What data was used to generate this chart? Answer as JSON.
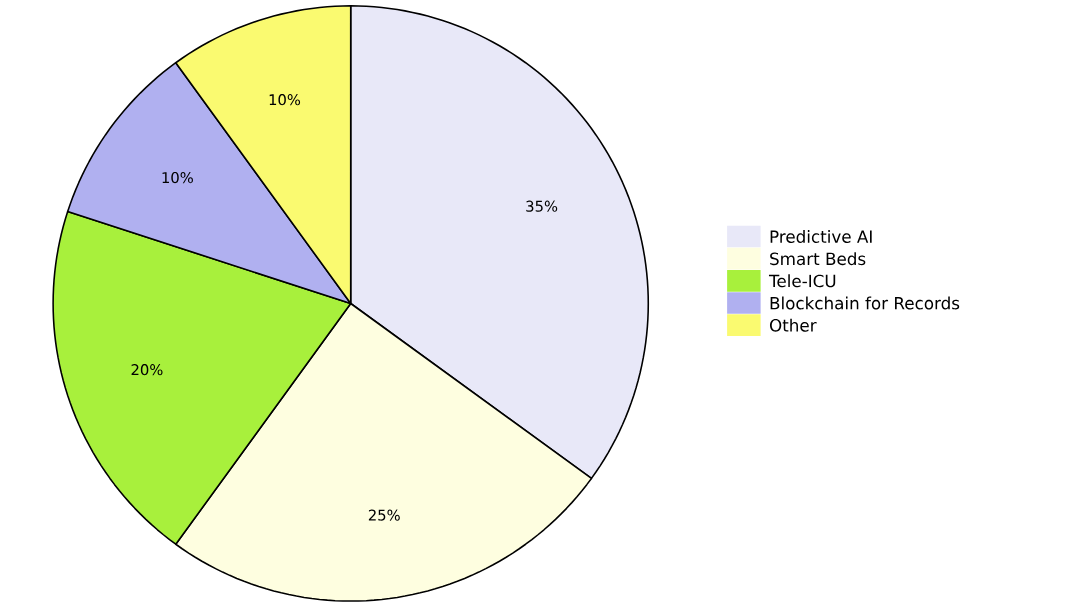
{
  "chart_data": {
    "type": "pie",
    "categories": [
      "Predictive AI",
      "Smart Beds",
      "Tele-ICU",
      "Blockchain for Records",
      "Other"
    ],
    "values": [
      35,
      25,
      20,
      10,
      10
    ],
    "value_labels": [
      "35%",
      "25%",
      "20%",
      "10%",
      "10%"
    ],
    "colors": [
      "#e8e8f8",
      "#fefee0",
      "#a8f03c",
      "#b0b0f0",
      "#fafa70"
    ],
    "legend": "right"
  }
}
